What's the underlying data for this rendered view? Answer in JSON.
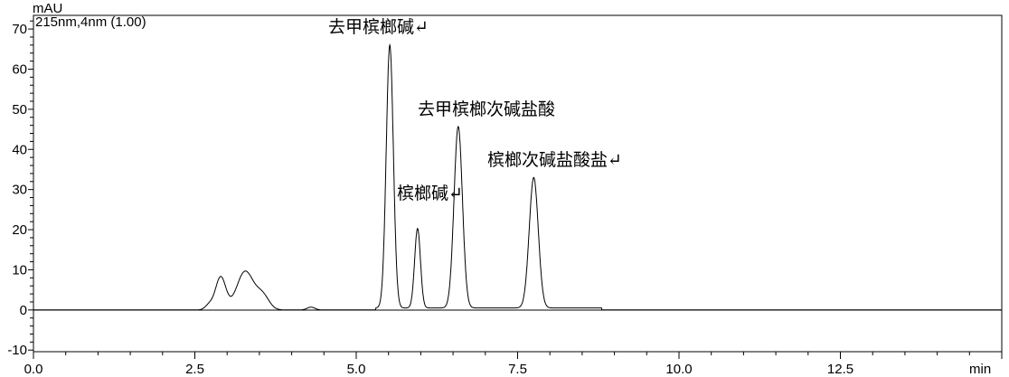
{
  "chart_data": {
    "type": "line",
    "ylabel": "mAU",
    "xlabel": "min",
    "subtitle": "215nm,4nm (1.00)",
    "xlim": [
      0,
      15
    ],
    "ylim": [
      -10.4,
      73.4
    ],
    "x_ticks": [
      "0.0",
      "2.5",
      "5.0",
      "7.5",
      "10.0",
      "12.5"
    ],
    "x_tick_values": [
      0,
      2.5,
      5,
      7.5,
      10,
      12.5
    ],
    "y_ticks": [
      "-10",
      "0",
      "10",
      "20",
      "30",
      "40",
      "50",
      "60",
      "70"
    ],
    "y_tick_values": [
      -10,
      0,
      10,
      20,
      30,
      40,
      50,
      60,
      70
    ],
    "grid": false,
    "line_color": "#000000",
    "peaks": [
      {
        "rt": 2.72,
        "height": 1.2,
        "width": 0.06
      },
      {
        "rt": 2.9,
        "height": 8.2,
        "width": 0.08
      },
      {
        "rt": 3.28,
        "height": 9.6,
        "width": 0.13
      },
      {
        "rt": 3.55,
        "height": 3.5,
        "width": 0.1
      },
      {
        "rt": 4.3,
        "height": 0.7,
        "width": 0.06
      },
      {
        "rt": 5.52,
        "height": 65.5,
        "width": 0.055
      },
      {
        "rt": 5.95,
        "height": 19.8,
        "width": 0.045
      },
      {
        "rt": 6.58,
        "height": 45.2,
        "width": 0.065
      },
      {
        "rt": 7.75,
        "height": 32.5,
        "width": 0.07
      }
    ],
    "annotations": [
      {
        "text": "去甲槟榔碱↵",
        "rt": 5.52
      },
      {
        "text": "槟榔碱↵",
        "rt": 5.95
      },
      {
        "text": "去甲槟榔次碱盐酸",
        "rt": 6.58
      },
      {
        "text": "槟榔次碱盐酸盐↵",
        "rt": 7.75
      }
    ]
  }
}
